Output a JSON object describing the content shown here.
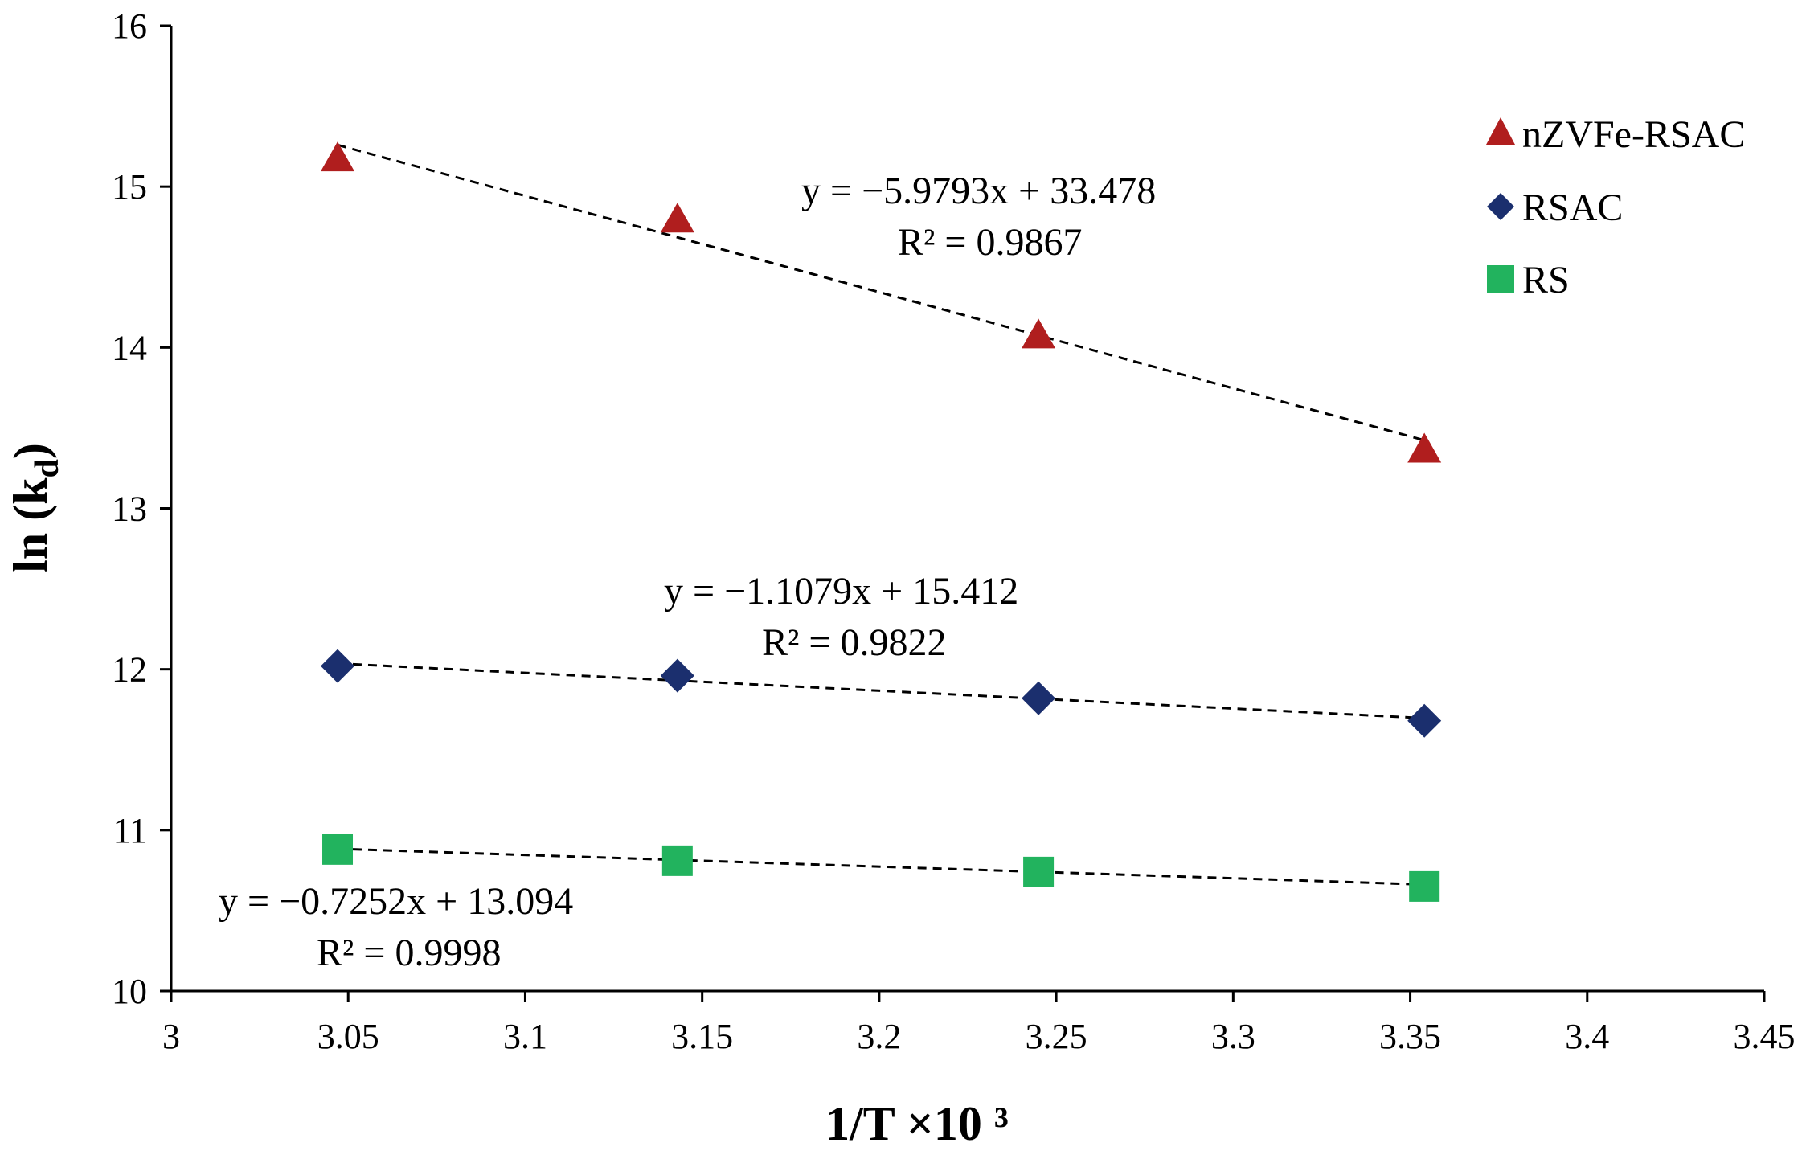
{
  "chart_data": {
    "type": "scatter",
    "title": "",
    "xlabel": "1/T ×10 ³",
    "ylabel": "ln (kd)",
    "ylabel_main": "ln (k",
    "ylabel_sub": "d",
    "ylabel_close": ")",
    "xlim": [
      3,
      3.45
    ],
    "ylim": [
      10,
      16
    ],
    "x_ticks": [
      3,
      3.05,
      3.1,
      3.15,
      3.2,
      3.25,
      3.3,
      3.35,
      3.4,
      3.45
    ],
    "x_tick_labels": [
      "3",
      "3.05",
      "3.1",
      "3.15",
      "3.2",
      "3.25",
      "3.3",
      "3.35",
      "3.4",
      "3.45"
    ],
    "y_ticks": [
      10,
      11,
      12,
      13,
      14,
      15,
      16
    ],
    "y_tick_labels": [
      "10",
      "11",
      "12",
      "13",
      "14",
      "15",
      "16"
    ],
    "grid": false,
    "legend_position": "top-right",
    "x": [
      3.047,
      3.143,
      3.245,
      3.354
    ],
    "series": [
      {
        "name": "nZVFe-RSAC",
        "marker": "triangle",
        "color": "#b01e1e",
        "values": [
          15.17,
          14.79,
          14.07,
          13.36
        ],
        "trendline": {
          "slope": -5.9793,
          "intercept": 33.478
        },
        "equation": "y = −5.9793x + 33.478",
        "r2": "R² = 0.9867"
      },
      {
        "name": "RSAC",
        "marker": "diamond",
        "color": "#1b2f6e",
        "values": [
          12.02,
          11.96,
          11.82,
          11.68
        ],
        "trendline": {
          "slope": -1.1079,
          "intercept": 15.412
        },
        "equation": "y = −1.1079x + 15.412",
        "r2": "R² = 0.9822"
      },
      {
        "name": "RS",
        "marker": "square",
        "color": "#22b35e",
        "values": [
          10.88,
          10.81,
          10.74,
          10.65
        ],
        "trendline": {
          "slope": -0.7252,
          "intercept": 13.094
        },
        "equation": "y = −0.7252x + 13.094",
        "r2": "R² = 0.9998"
      }
    ]
  }
}
